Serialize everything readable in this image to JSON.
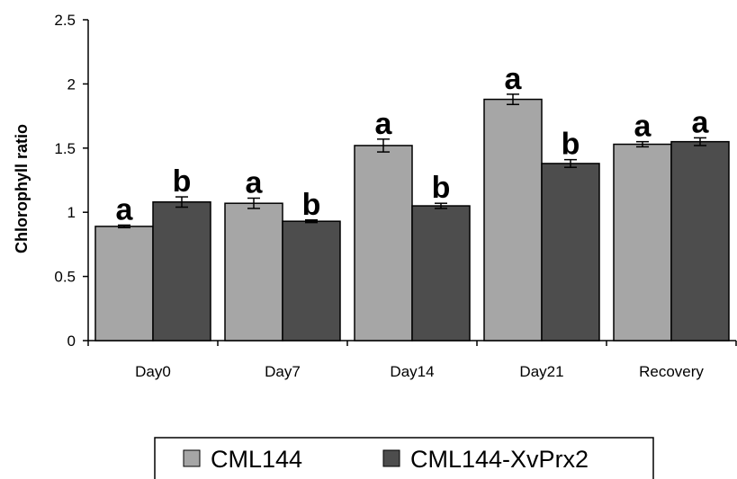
{
  "chart_data": {
    "type": "bar",
    "title": "",
    "xlabel": "",
    "ylabel": "Chlorophyll ratio",
    "ylim": [
      0,
      2.5
    ],
    "yticks": [
      "0",
      "0.5",
      "1",
      "1.5",
      "2",
      "2.5"
    ],
    "ytick_values": [
      0,
      0.5,
      1,
      1.5,
      2,
      2.5
    ],
    "grid": false,
    "legend_position": "bottom",
    "categories": [
      "Day0",
      "Day7",
      "Day14",
      "Day21",
      "Recovery"
    ],
    "series": [
      {
        "name": "CML144",
        "color": "#a6a6a6",
        "values": [
          0.89,
          1.07,
          1.52,
          1.88,
          1.53
        ],
        "errors": [
          0.01,
          0.04,
          0.05,
          0.04,
          0.02
        ],
        "significance": [
          "a",
          "a",
          "a",
          "a",
          "a"
        ]
      },
      {
        "name": "CML144-XvPrx2",
        "color": "#4d4d4d",
        "values": [
          1.08,
          0.93,
          1.05,
          1.38,
          1.55
        ],
        "errors": [
          0.04,
          0.01,
          0.02,
          0.03,
          0.03
        ],
        "significance": [
          "b",
          "b",
          "b",
          "b",
          "a"
        ]
      }
    ]
  }
}
